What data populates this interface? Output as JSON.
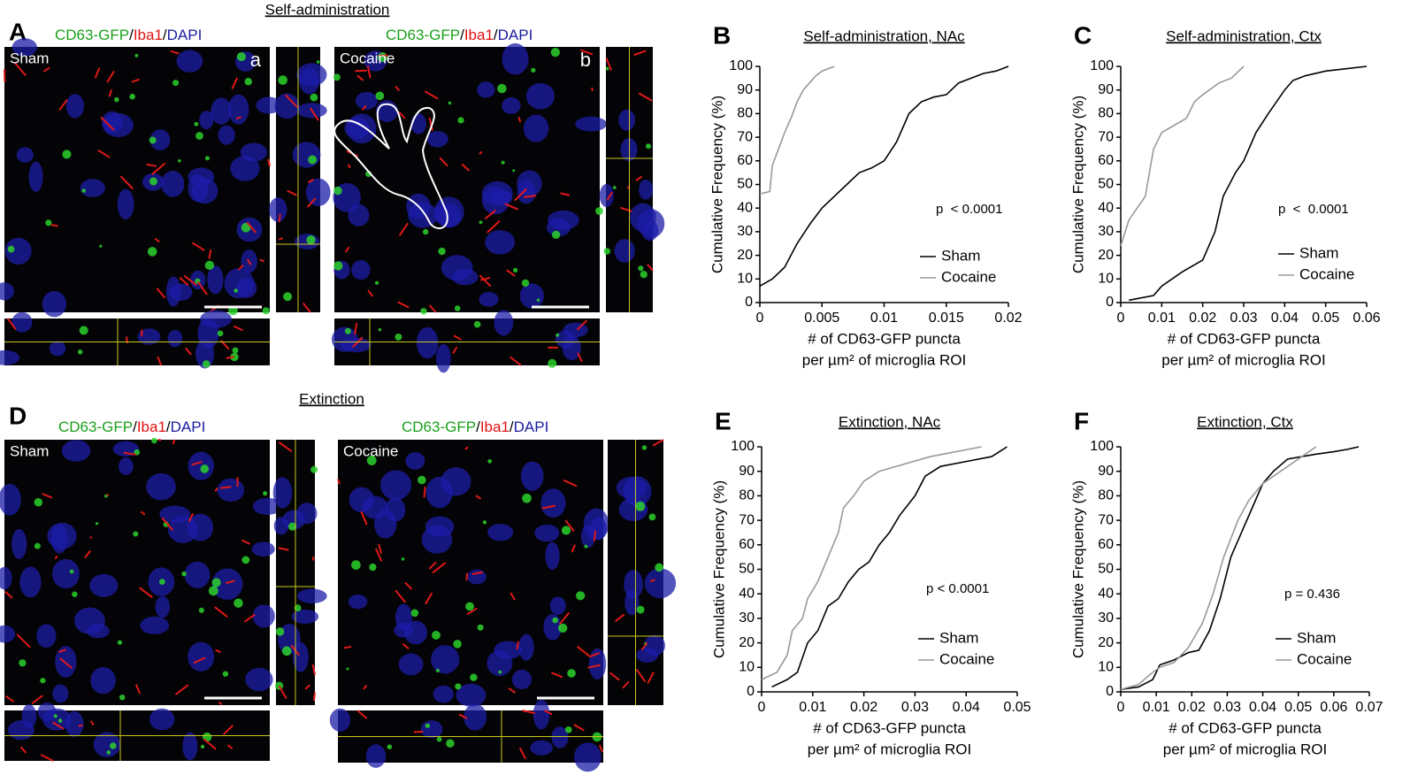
{
  "panels": {
    "A": {
      "letter": "A",
      "title": "Self-administration",
      "images": [
        {
          "condition": "Sham",
          "tag": "a"
        },
        {
          "condition": "Cocaine",
          "tag": "b"
        }
      ]
    },
    "D": {
      "letter": "D",
      "title": "Extinction",
      "images": [
        {
          "condition": "Sham"
        },
        {
          "condition": "Cocaine"
        }
      ]
    },
    "stain": [
      "CD63-GFP",
      "/",
      "Iba1",
      "/",
      "DAPI"
    ]
  },
  "chart_data": [
    {
      "type": "line",
      "panel": "B",
      "title": "Self-administration, NAc",
      "ylabel": "Cumulative Frequency (%)",
      "xlabel": [
        "# of CD63-GFP puncta",
        "per µm² of microglia ROI"
      ],
      "annotation": "p  < 0.0001",
      "xlim": [
        0,
        0.02
      ],
      "xticks": [
        0,
        0.005,
        0.01,
        0.015,
        0.02
      ],
      "ylim": [
        0,
        100
      ],
      "yticks": [
        0,
        10,
        20,
        30,
        40,
        50,
        60,
        70,
        80,
        90,
        100
      ],
      "series": [
        {
          "name": "Sham",
          "color": "#000000",
          "x": [
            0,
            0.001,
            0.002,
            0.003,
            0.004,
            0.005,
            0.006,
            0.007,
            0.008,
            0.009,
            0.01,
            0.011,
            0.012,
            0.013,
            0.014,
            0.015,
            0.016,
            0.017,
            0.018,
            0.019,
            0.02
          ],
          "values": [
            7,
            10,
            15,
            25,
            33,
            40,
            45,
            50,
            55,
            57,
            60,
            68,
            80,
            85,
            87,
            88,
            93,
            95,
            97,
            98,
            100
          ]
        },
        {
          "name": "Cocaine",
          "color": "#999999",
          "x": [
            0,
            0.0008,
            0.001,
            0.0015,
            0.002,
            0.0025,
            0.003,
            0.0035,
            0.004,
            0.0045,
            0.005,
            0.006
          ],
          "values": [
            46,
            47,
            58,
            65,
            72,
            78,
            85,
            90,
            93,
            96,
            98,
            100
          ]
        }
      ]
    },
    {
      "type": "line",
      "panel": "C",
      "title": "Self-administration, Ctx",
      "ylabel": "Cumulative Frequency (%)",
      "xlabel": [
        "# of CD63-GFP puncta",
        "per µm² of microglia ROI"
      ],
      "annotation": "p  <  0.0001",
      "xlim": [
        0,
        0.06
      ],
      "xticks": [
        0,
        0.01,
        0.02,
        0.03,
        0.04,
        0.05,
        0.06
      ],
      "ylim": [
        0,
        100
      ],
      "yticks": [
        0,
        10,
        20,
        30,
        40,
        50,
        60,
        70,
        80,
        90,
        100
      ],
      "series": [
        {
          "name": "Sham",
          "color": "#000000",
          "x": [
            0.002,
            0.008,
            0.01,
            0.015,
            0.02,
            0.023,
            0.025,
            0.028,
            0.03,
            0.033,
            0.036,
            0.04,
            0.042,
            0.045,
            0.05,
            0.06
          ],
          "values": [
            1,
            3,
            7,
            13,
            18,
            30,
            45,
            55,
            60,
            72,
            80,
            90,
            94,
            96,
            98,
            100
          ]
        },
        {
          "name": "Cocaine",
          "color": "#999999",
          "x": [
            0,
            0.002,
            0.004,
            0.006,
            0.007,
            0.008,
            0.01,
            0.013,
            0.016,
            0.018,
            0.02,
            0.024,
            0.027,
            0.03
          ],
          "values": [
            24,
            35,
            40,
            45,
            55,
            65,
            72,
            75,
            78,
            85,
            88,
            93,
            95,
            100
          ]
        }
      ]
    },
    {
      "type": "line",
      "panel": "E",
      "title": "Extinction, NAc",
      "ylabel": "Cumulative Frequency (%)",
      "xlabel": [
        "# of CD63-GFP puncta",
        "per µm² of microglia ROI"
      ],
      "annotation": "p < 0.0001",
      "xlim": [
        0,
        0.05
      ],
      "xticks": [
        0,
        0.01,
        0.02,
        0.03,
        0.04,
        0.05
      ],
      "ylim": [
        0,
        100
      ],
      "yticks": [
        0,
        10,
        20,
        30,
        40,
        50,
        60,
        70,
        80,
        90,
        100
      ],
      "series": [
        {
          "name": "Sham",
          "color": "#000000",
          "x": [
            0.002,
            0.005,
            0.007,
            0.009,
            0.011,
            0.013,
            0.015,
            0.017,
            0.019,
            0.021,
            0.023,
            0.025,
            0.027,
            0.03,
            0.032,
            0.035,
            0.04,
            0.045,
            0.048
          ],
          "values": [
            2,
            5,
            8,
            20,
            25,
            35,
            38,
            45,
            50,
            53,
            60,
            65,
            72,
            80,
            88,
            92,
            94,
            96,
            100
          ]
        },
        {
          "name": "Cocaine",
          "color": "#999999",
          "x": [
            0,
            0.003,
            0.005,
            0.006,
            0.008,
            0.009,
            0.011,
            0.013,
            0.015,
            0.016,
            0.018,
            0.02,
            0.023,
            0.028,
            0.033,
            0.038,
            0.043
          ],
          "values": [
            5,
            8,
            15,
            25,
            30,
            38,
            45,
            55,
            65,
            75,
            80,
            86,
            90,
            93,
            96,
            98,
            100
          ]
        }
      ]
    },
    {
      "type": "line",
      "panel": "F",
      "title": "Extinction, Ctx",
      "ylabel": "Cumulative Frequency (%)",
      "xlabel": [
        "# of CD63-GFP puncta",
        "per µm² of microglia ROI"
      ],
      "annotation": "p = 0.436",
      "xlim": [
        0,
        0.07
      ],
      "xticks": [
        0,
        0.01,
        0.02,
        0.03,
        0.04,
        0.05,
        0.06,
        0.07
      ],
      "ylim": [
        0,
        100
      ],
      "yticks": [
        0,
        10,
        20,
        30,
        40,
        50,
        60,
        70,
        80,
        90,
        100
      ],
      "series": [
        {
          "name": "Sham",
          "color": "#000000",
          "x": [
            0,
            0.005,
            0.009,
            0.011,
            0.015,
            0.019,
            0.022,
            0.025,
            0.028,
            0.031,
            0.034,
            0.037,
            0.04,
            0.043,
            0.047,
            0.055,
            0.06,
            0.064,
            0.067
          ],
          "values": [
            1,
            2,
            5,
            11,
            13,
            16,
            17,
            25,
            38,
            55,
            65,
            75,
            85,
            90,
            95,
            97,
            98,
            99,
            100
          ]
        },
        {
          "name": "Cocaine",
          "color": "#999999",
          "x": [
            0,
            0.005,
            0.009,
            0.011,
            0.015,
            0.019,
            0.023,
            0.026,
            0.029,
            0.033,
            0.036,
            0.04,
            0.045,
            0.05,
            0.055
          ],
          "values": [
            1,
            3,
            8,
            10,
            12,
            18,
            28,
            40,
            55,
            70,
            78,
            85,
            90,
            95,
            100
          ]
        }
      ]
    }
  ]
}
